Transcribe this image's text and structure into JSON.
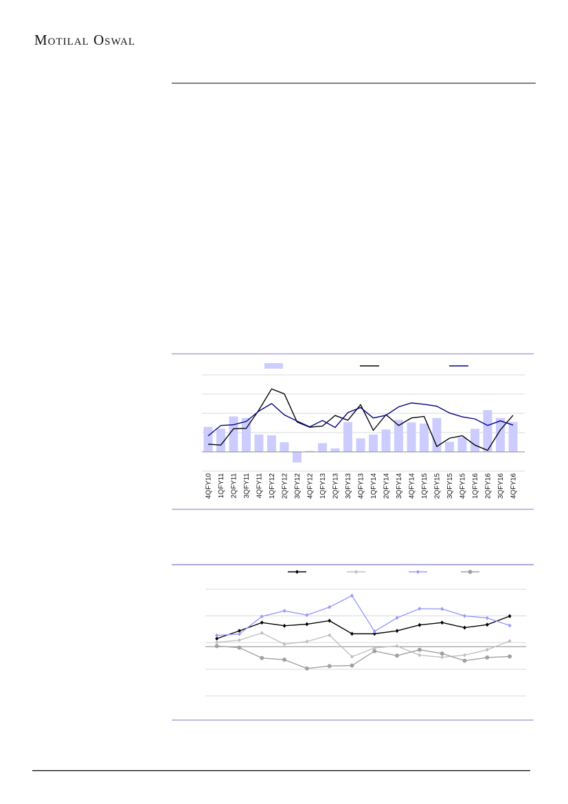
{
  "header": {
    "brand": "Motilal Oswal"
  },
  "colors": {
    "bars": "#ccccff",
    "line_black": "#000000",
    "line_navy": "#000080",
    "frame": "#9c98d4",
    "s_black": "#000000",
    "s_lightgray": "#c0c0c0",
    "s_blue": "#9999ff",
    "s_darkgray": "#a0a0a0"
  },
  "chart_data": [
    {
      "type": "bar",
      "categories": [
        "4QFY10",
        "1QFY11",
        "2QFY11",
        "3QFY11",
        "4QFY11",
        "1QFY12",
        "2QFY12",
        "3QFY12",
        "4QFY12",
        "1QFY13",
        "2QFY13",
        "3QFY13",
        "4QFY13",
        "1QFY14",
        "2QFY14",
        "3QFY14",
        "4QFY14",
        "1QFY15",
        "2QFY15",
        "3QFY15",
        "4QFY15",
        "1QFY16",
        "2QFY16",
        "3QFY16",
        "4QFY16"
      ],
      "ylim": [
        -1,
        4
      ],
      "grid": true,
      "legend": "top",
      "series": [
        {
          "kind": "bar",
          "color": "#ccccff",
          "values": [
            1.3,
            1.2,
            1.84,
            1.76,
            0.9,
            0.86,
            0.5,
            -0.55,
            0.05,
            0.45,
            0.18,
            1.55,
            0.7,
            0.9,
            1.16,
            1.66,
            1.53,
            1.47,
            1.76,
            0.52,
            0.76,
            1.2,
            2.17,
            1.76,
            1.55
          ]
        },
        {
          "kind": "line",
          "color": "#000000",
          "values": [
            0.4,
            0.35,
            1.2,
            1.22,
            2.18,
            3.27,
            3.01,
            1.55,
            1.28,
            1.34,
            1.89,
            1.64,
            2.45,
            1.12,
            1.93,
            1.37,
            1.76,
            1.84,
            0.28,
            0.71,
            0.84,
            0.35,
            0.08,
            1.14,
            1.9
          ]
        },
        {
          "kind": "line",
          "color": "#000080",
          "values": [
            0.83,
            1.37,
            1.41,
            1.58,
            2.12,
            2.51,
            1.92,
            1.6,
            1.3,
            1.63,
            1.27,
            2.04,
            2.3,
            1.76,
            1.9,
            2.34,
            2.54,
            2.47,
            2.37,
            2.02,
            1.82,
            1.71,
            1.37,
            1.61,
            1.39
          ]
        }
      ]
    },
    {
      "type": "line",
      "ylim": [
        -2,
        2
      ],
      "grid": true,
      "legend": "top",
      "series": [
        {
          "color": "#000000",
          "marker": "diamond",
          "values": [
            0.15,
            0.44,
            0.75,
            0.63,
            0.69,
            0.82,
            0.33,
            0.33,
            0.44,
            0.66,
            0.75,
            0.56,
            0.67,
            0.99
          ]
        },
        {
          "color": "#c0c0c0",
          "marker": "diamond",
          "values": [
            0.01,
            0.09,
            0.36,
            -0.06,
            0.04,
            0.28,
            -0.53,
            -0.2,
            -0.13,
            -0.47,
            -0.55,
            -0.47,
            -0.27,
            0.06
          ]
        },
        {
          "color": "#9999ff",
          "marker": "diamond",
          "values": [
            0.27,
            0.32,
            0.98,
            1.19,
            1.03,
            1.33,
            1.76,
            0.42,
            0.93,
            1.27,
            1.26,
            1.0,
            0.92,
            0.64
          ]
        },
        {
          "color": "#a0a0a0",
          "marker": "circle",
          "values": [
            -0.13,
            -0.19,
            -0.58,
            -0.64,
            -0.97,
            -0.88,
            -0.86,
            -0.32,
            -0.49,
            -0.27,
            -0.41,
            -0.68,
            -0.56,
            -0.52
          ]
        }
      ]
    }
  ]
}
